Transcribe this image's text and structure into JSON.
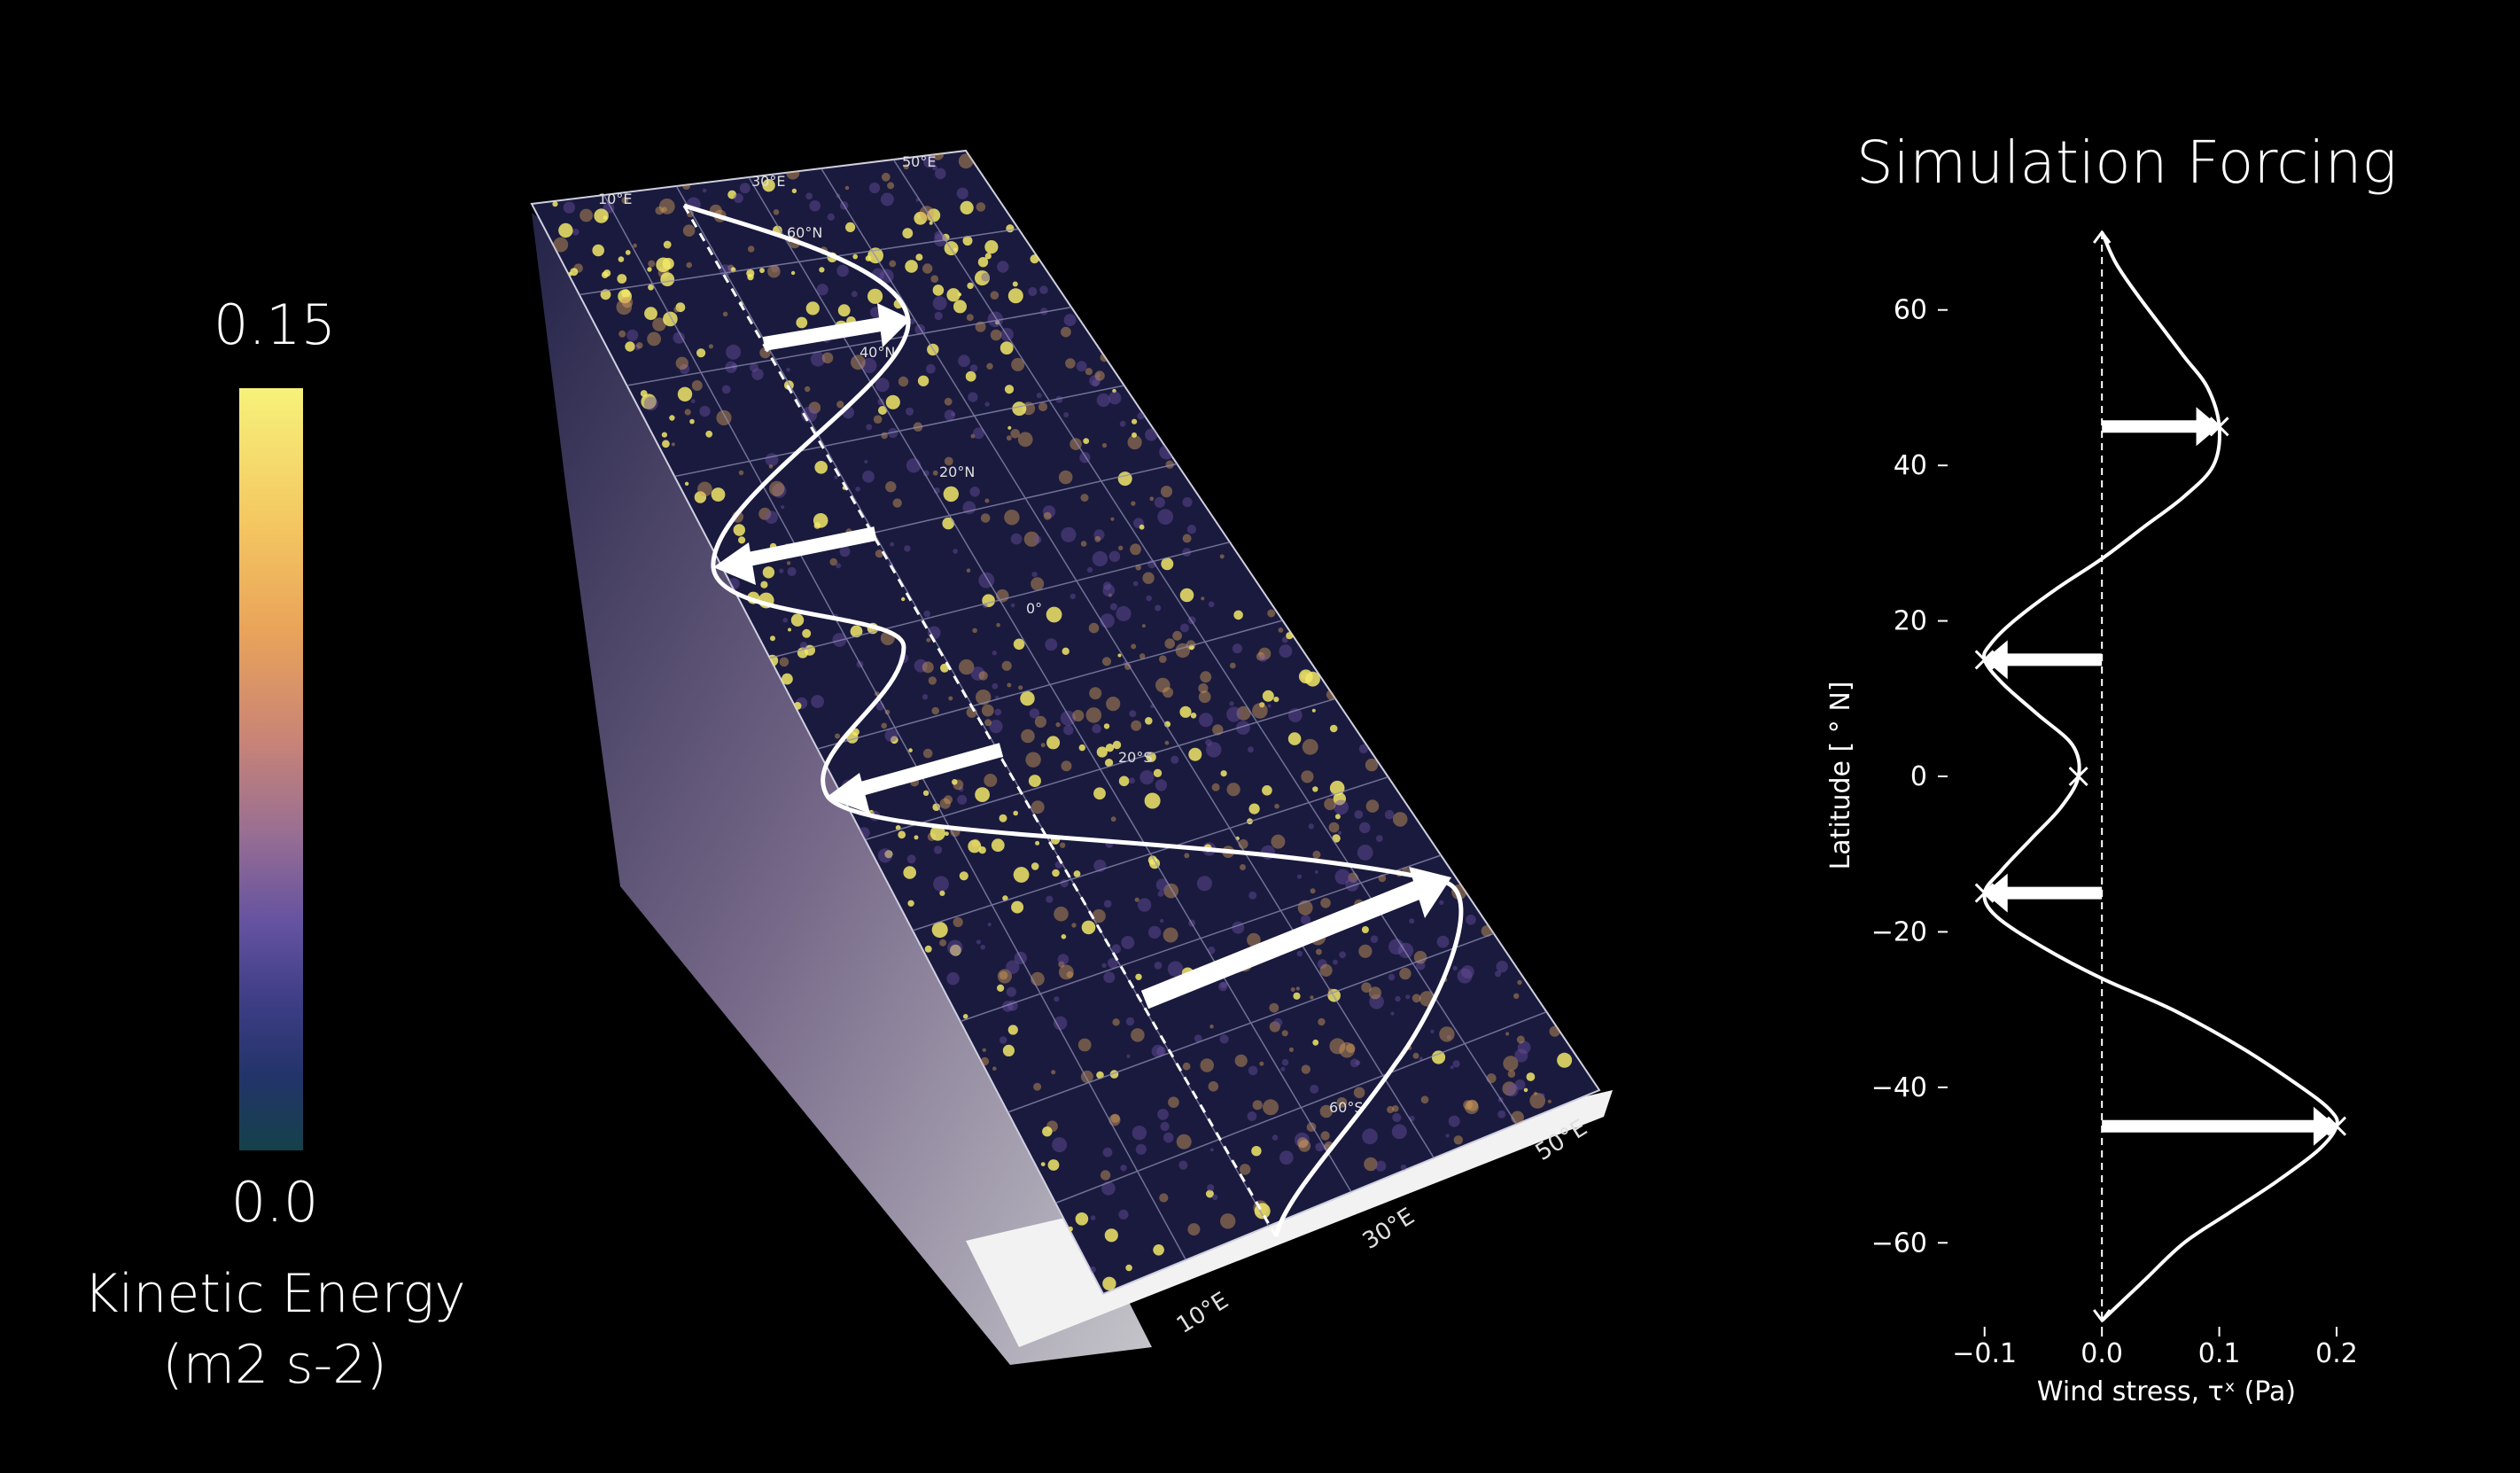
{
  "colorbar": {
    "max_label": "0.15",
    "min_label": "0.0",
    "label_line1": "Kinetic Energy",
    "label_line2": "(m2 s-2)"
  },
  "map_labels": {
    "lon_top": [
      "10°E",
      "30°E",
      "50°E"
    ],
    "lon_bottom": [
      "10°E",
      "30°E",
      "50°E"
    ],
    "lat": [
      "60°N",
      "40°N",
      "20°N",
      "0°",
      "20°S",
      "60°S"
    ]
  },
  "chart_data": {
    "type": "line",
    "title": "Simulation Forcing",
    "xlabel": "Wind stress, τˣ (Pa)",
    "ylabel": "Latitude [ ° N]",
    "xlim": [
      -0.13,
      0.24
    ],
    "ylim": [
      -70,
      70
    ],
    "xticks": [
      -0.1,
      0.0,
      0.1,
      0.2
    ],
    "xtick_labels": [
      "−0.1",
      "0.0",
      "0.1",
      "0.2"
    ],
    "yticks": [
      60,
      40,
      20,
      0,
      -20,
      -40,
      -60
    ],
    "ytick_labels": [
      "60",
      "40",
      "20",
      "0",
      "−20",
      "−40",
      "−60"
    ],
    "series": [
      {
        "x": [
          0.0,
          0.012,
          0.03,
          0.05,
          0.07,
          0.09,
          0.1,
          0.095,
          0.07,
          0.035,
          0.0,
          -0.04,
          -0.075,
          -0.095,
          -0.1,
          -0.085,
          -0.055,
          -0.025,
          -0.02,
          -0.035,
          -0.06,
          -0.085,
          -0.1,
          -0.09,
          -0.05,
          0.0,
          0.06,
          0.12,
          0.17,
          0.195,
          0.2,
          0.185,
          0.15,
          0.11,
          0.07,
          0.035,
          0.0
        ],
        "y": [
          70,
          66,
          62,
          58,
          54,
          50,
          45,
          40,
          36,
          32,
          28,
          24,
          20,
          17,
          15,
          12,
          8,
          4,
          0,
          -4,
          -8,
          -12,
          -15,
          -18,
          -22,
          -26,
          -30,
          -35,
          -40,
          -43,
          -45,
          -48,
          -52,
          -56,
          -60,
          -65,
          -70
        ]
      }
    ],
    "arrows": [
      {
        "lat": 45,
        "tau": 0.1
      },
      {
        "lat": 15,
        "tau": -0.1
      },
      {
        "lat": -15,
        "tau": -0.1
      },
      {
        "lat": -45,
        "tau": 0.2
      }
    ],
    "markers": [
      {
        "lat": 45,
        "tau": 0.1
      },
      {
        "lat": 15,
        "tau": -0.1
      },
      {
        "lat": 0,
        "tau": -0.02
      },
      {
        "lat": -15,
        "tau": -0.1
      },
      {
        "lat": -45,
        "tau": 0.2
      }
    ],
    "grid": false,
    "zero_line": "dashed"
  }
}
